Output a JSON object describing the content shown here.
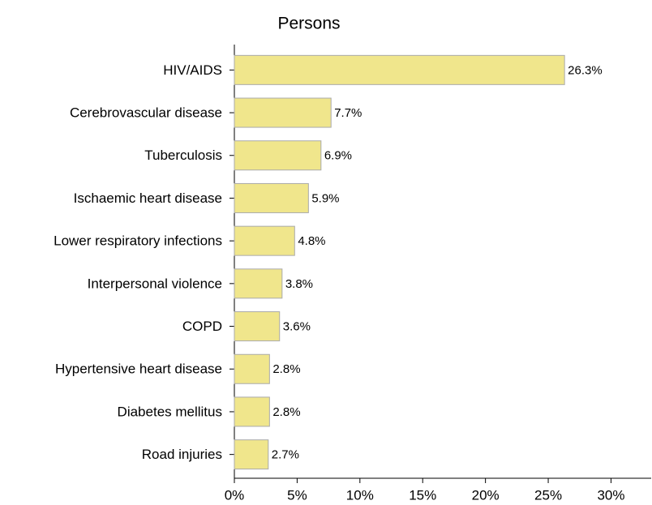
{
  "chart_data": {
    "type": "barh",
    "title": "Persons",
    "categories": [
      "HIV/AIDS",
      "Cerebrovascular disease",
      "Tuberculosis",
      "Ischaemic heart disease",
      "Lower respiratory infections",
      "Interpersonal violence",
      "COPD",
      "Hypertensive heart disease",
      "Diabetes mellitus",
      "Road injuries"
    ],
    "values": [
      26.3,
      7.7,
      6.9,
      5.9,
      4.8,
      3.8,
      3.6,
      2.8,
      2.8,
      2.7
    ],
    "value_labels": [
      "26.3%",
      "7.7%",
      "6.9%",
      "5.9%",
      "4.8%",
      "3.8%",
      "3.6%",
      "2.8%",
      "2.8%",
      "2.7%"
    ],
    "color": "#f0e68c",
    "xlim": [
      0,
      33.2
    ],
    "xticks": [
      {
        "value": 0,
        "label": "0%"
      },
      {
        "value": 5,
        "label": "5%"
      },
      {
        "value": 10,
        "label": "10%"
      },
      {
        "value": 15,
        "label": "15%"
      },
      {
        "value": 20,
        "label": "20%"
      },
      {
        "value": 25,
        "label": "25%"
      },
      {
        "value": 30,
        "label": "30%"
      }
    ]
  }
}
